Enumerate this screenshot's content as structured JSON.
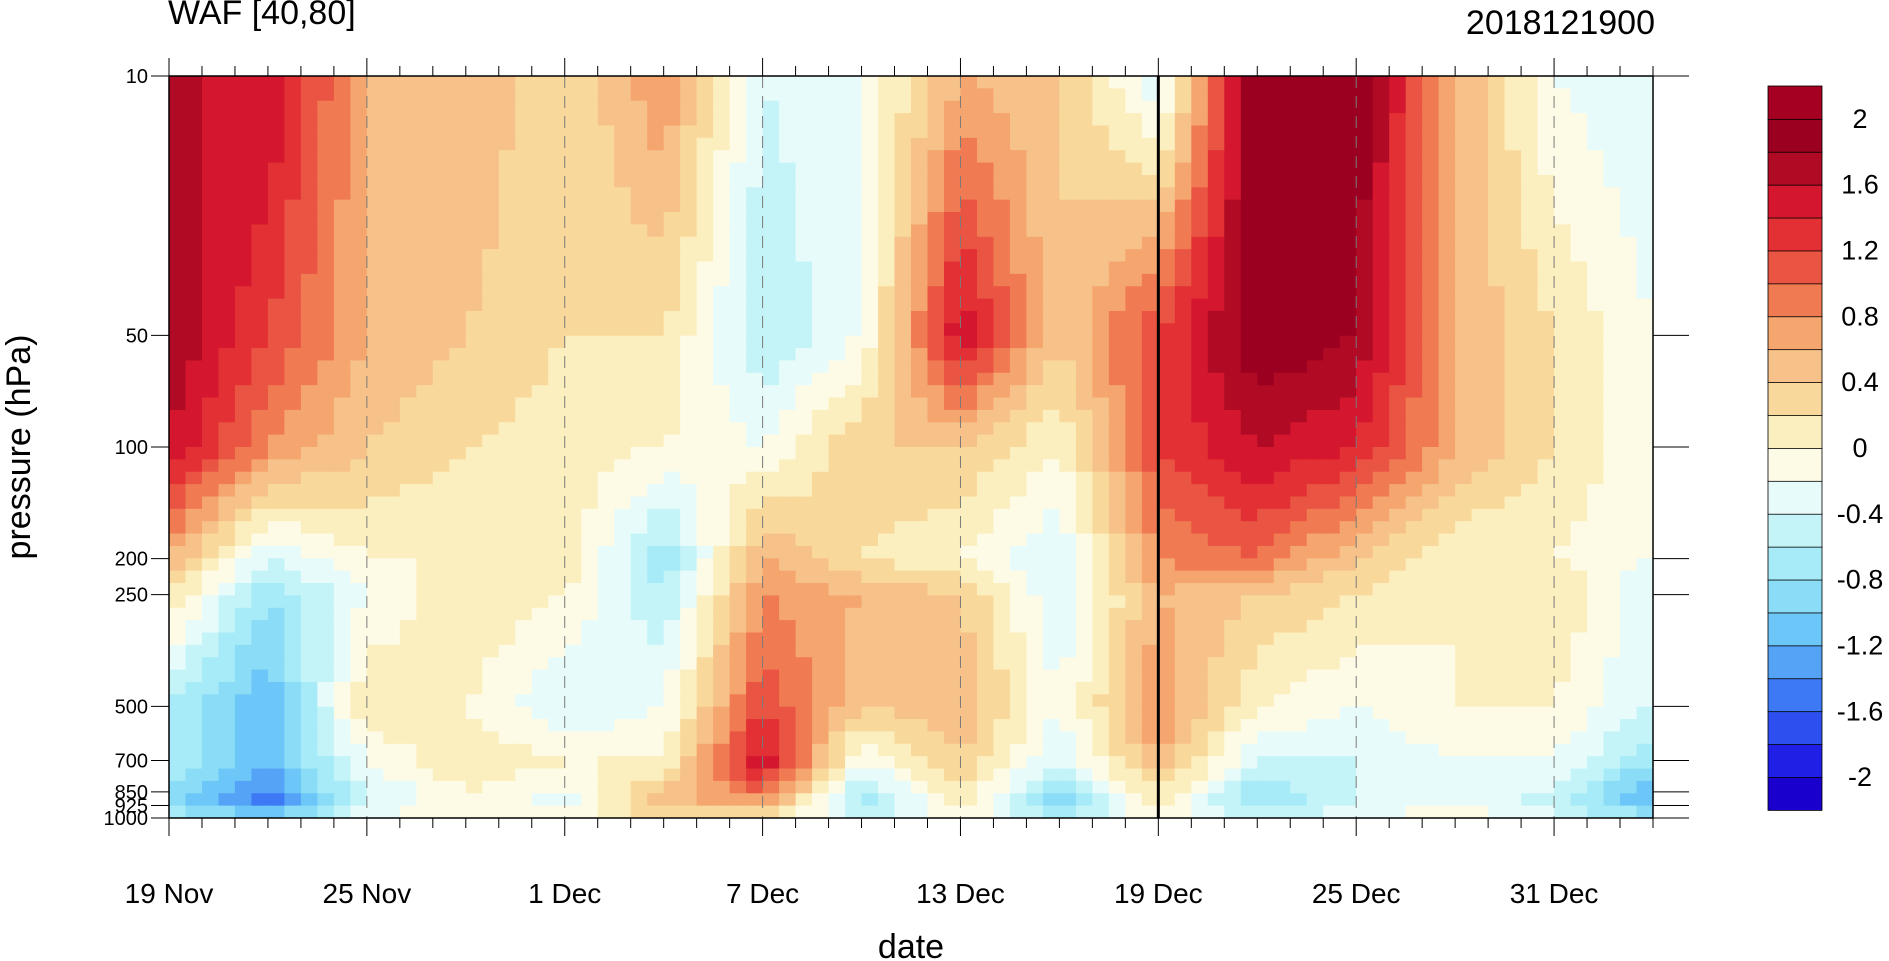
{
  "chart_data": {
    "type": "heatmap",
    "title_left": "WAF [40,80]",
    "title_right": "2018121900",
    "xlabel": "date",
    "ylabel": "pressure (hPa)",
    "x_start_date": "2018-11-19",
    "x_ticks": [
      {
        "day": 0,
        "label": "19 Nov"
      },
      {
        "day": 6,
        "label": "25 Nov"
      },
      {
        "day": 12,
        "label": "1 Dec"
      },
      {
        "day": 18,
        "label": "7 Dec"
      },
      {
        "day": 24,
        "label": "13 Dec"
      },
      {
        "day": 30,
        "label": "19 Dec"
      },
      {
        "day": 36,
        "label": "25 Dec"
      },
      {
        "day": 42,
        "label": "31 Dec"
      }
    ],
    "x_range": [
      0,
      45
    ],
    "y_scale": "log",
    "y_range": [
      1000,
      10
    ],
    "y_ticks": [
      "10",
      "50",
      "100",
      "200",
      "250",
      "500",
      "700",
      "850",
      "925",
      "1000"
    ],
    "analysis_day": 30,
    "levels": [
      -2,
      -1.8,
      -1.6,
      -1.4,
      -1.2,
      -1,
      -0.8,
      -0.6,
      -0.4,
      -0.2,
      0,
      0.2,
      0.4,
      0.6,
      0.8,
      1,
      1.2,
      1.4,
      1.6,
      1.8,
      2
    ],
    "colorbar_labels": [
      "2",
      "1.6",
      "1.2",
      "0.8",
      "0.4",
      "0",
      "-0.4",
      "-0.8",
      "-1.2",
      "-1.6",
      "-2"
    ],
    "colors": [
      "#1a00cc",
      "#1f1fe6",
      "#2e4ff0",
      "#3d78f5",
      "#55a3f7",
      "#6cc6f7",
      "#8bdcf7",
      "#a6ebf7",
      "#c4f4f8",
      "#e8fbfb",
      "#fdfbe6",
      "#fcefbf",
      "#f9d99b",
      "#f7c18a",
      "#f5a56e",
      "#f07b52",
      "#ea5442",
      "#e33035",
      "#d4162e",
      "#b00a24",
      "#9c0020",
      "#a50021"
    ],
    "grid_x": [
      0,
      3,
      6,
      9,
      12,
      15,
      18,
      21,
      24,
      27,
      30,
      33,
      36,
      39,
      42,
      45
    ],
    "grid_p": [
      10,
      50,
      100,
      200,
      250,
      500,
      700,
      850,
      925,
      1000
    ],
    "values": [
      [
        1.6,
        1.6,
        0.6,
        0.6,
        0.2,
        0.8,
        -0.4,
        -0.2,
        0.6,
        0.4,
        -0.4,
        2.0,
        2.0,
        0.6,
        -0.2,
        -0.4
      ],
      [
        1.8,
        1.2,
        0.6,
        0.4,
        0.2,
        0.2,
        -0.6,
        -0.2,
        1.6,
        0.4,
        1.2,
        2.0,
        1.8,
        0.6,
        0.2,
        -0.2
      ],
      [
        1.6,
        0.8,
        0.4,
        0.2,
        0.1,
        0.0,
        -0.2,
        0.4,
        0.4,
        0.0,
        1.2,
        1.6,
        1.4,
        0.6,
        0.2,
        -0.2
      ],
      [
        0.6,
        -0.4,
        0.0,
        0.0,
        0.2,
        -0.8,
        0.6,
        0.2,
        0.0,
        -0.4,
        0.8,
        1.0,
        0.4,
        0.0,
        0.0,
        -0.2
      ],
      [
        0.2,
        -0.8,
        -0.2,
        0.2,
        0.0,
        -0.6,
        0.8,
        0.6,
        0.4,
        -0.4,
        0.6,
        0.4,
        0.2,
        0.0,
        0.2,
        -0.4
      ],
      [
        -0.6,
        -1.2,
        0.2,
        0.0,
        -0.4,
        -0.2,
        1.2,
        0.4,
        0.6,
        -0.2,
        0.8,
        0.0,
        -0.2,
        0.0,
        0.0,
        -0.4
      ],
      [
        -0.6,
        -1.2,
        -0.2,
        0.2,
        0.0,
        0.0,
        1.6,
        -0.2,
        0.4,
        -0.4,
        0.6,
        -0.4,
        -0.4,
        -0.2,
        -0.2,
        -0.8
      ],
      [
        -0.8,
        -1.4,
        -0.4,
        0.0,
        -0.2,
        0.4,
        1.0,
        -0.6,
        0.2,
        -0.8,
        0.2,
        -0.8,
        -0.4,
        -0.2,
        -0.4,
        -1.2
      ],
      [
        -1.0,
        -1.6,
        -0.4,
        0.0,
        -0.4,
        0.6,
        0.6,
        -0.8,
        0.0,
        -1.0,
        0.0,
        -0.8,
        -0.4,
        -0.2,
        -0.6,
        -1.2
      ],
      [
        -0.4,
        -0.8,
        -0.2,
        0.0,
        0.0,
        0.2,
        0.2,
        -0.4,
        0.0,
        -0.4,
        0.0,
        -0.4,
        -0.2,
        0.0,
        -0.2,
        -0.6
      ]
    ]
  }
}
